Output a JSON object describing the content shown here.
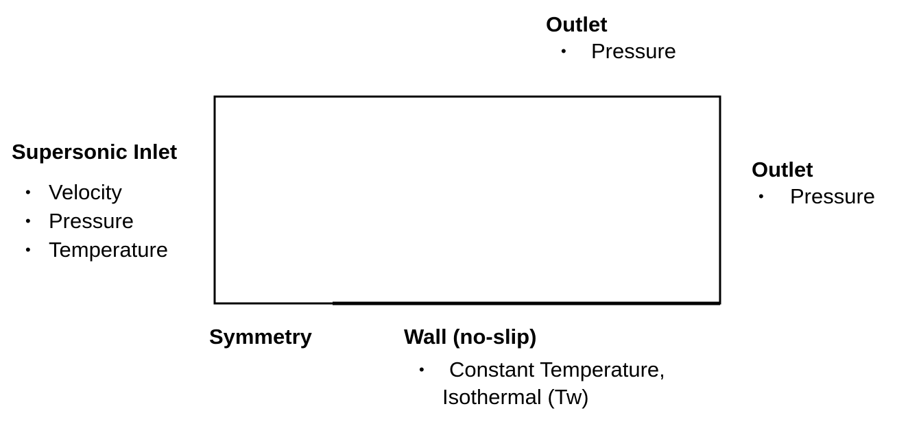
{
  "outlet_top": {
    "title": "Outlet",
    "items": [
      "Pressure"
    ]
  },
  "outlet_right": {
    "title": "Outlet",
    "items": [
      "Pressure"
    ]
  },
  "inlet": {
    "title": "Supersonic Inlet",
    "items": [
      "Velocity",
      "Pressure",
      "Temperature"
    ]
  },
  "symmetry": {
    "title": "Symmetry"
  },
  "wall": {
    "title": "Wall (no-slip)",
    "item_line1": "Constant Temperature,",
    "item_line2": "Isothermal (Tw)"
  },
  "bullet": "•"
}
